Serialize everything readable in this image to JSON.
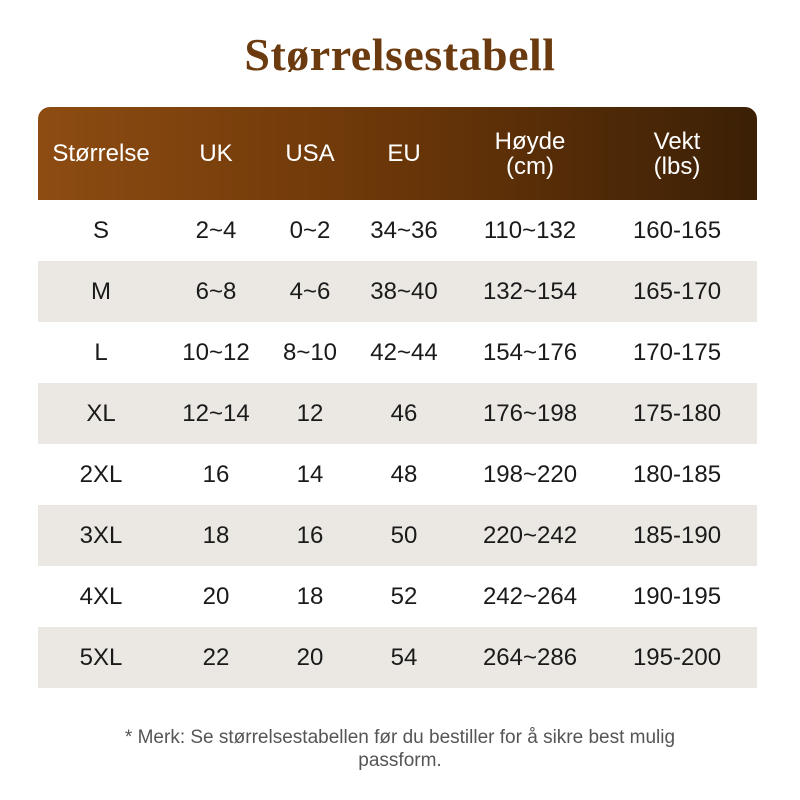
{
  "title": "Størrelsestabell",
  "table": {
    "header": [
      [
        "Størrelse"
      ],
      [
        "UK"
      ],
      [
        "USA"
      ],
      [
        "EU"
      ],
      [
        "Høyde",
        "(cm)"
      ],
      [
        "Vekt",
        "(lbs)"
      ]
    ],
    "rows": [
      [
        "S",
        "2~4",
        "0~2",
        "34~36",
        "110~132",
        "160-165"
      ],
      [
        "M",
        "6~8",
        "4~6",
        "38~40",
        "132~154",
        "165-170"
      ],
      [
        "L",
        "10~12",
        "8~10",
        "42~44",
        "154~176",
        "170-175"
      ],
      [
        "XL",
        "12~14",
        "12",
        "46",
        "176~198",
        "175-180"
      ],
      [
        "2XL",
        "16",
        "14",
        "48",
        "198~220",
        "180-185"
      ],
      [
        "3XL",
        "18",
        "16",
        "50",
        "220~242",
        "185-190"
      ],
      [
        "4XL",
        "20",
        "18",
        "52",
        "242~264",
        "190-195"
      ],
      [
        "5XL",
        "22",
        "20",
        "54",
        "264~286",
        "195-200"
      ]
    ]
  },
  "note": [
    "* Merk: Se størrelsestabellen før du bestiller for å sikre best mulig",
    "passform."
  ]
}
